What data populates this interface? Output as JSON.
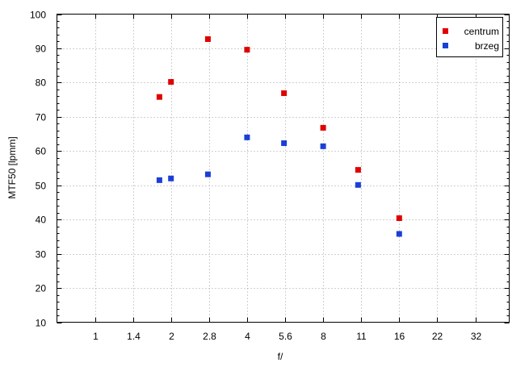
{
  "chart_data": {
    "type": "scatter",
    "title": "",
    "xlabel": "f/",
    "ylabel": "MTF50 [lpmm]",
    "x_ticks": [
      "1",
      "1.4",
      "2",
      "2.8",
      "4",
      "5.6",
      "8",
      "11",
      "16",
      "22",
      "32"
    ],
    "x_scale": "log2",
    "ylim": [
      10,
      100
    ],
    "y_ticks": [
      10,
      20,
      30,
      40,
      50,
      60,
      70,
      80,
      90,
      100
    ],
    "grid": true,
    "legend_position": "top-right",
    "series": [
      {
        "name": "centrum",
        "color": "#e00000",
        "x": [
          1.8,
          2,
          2.8,
          4,
          5.6,
          8,
          11,
          16
        ],
        "y": [
          75.8,
          80.2,
          92.7,
          89.6,
          76.9,
          66.8,
          54.5,
          40.4
        ]
      },
      {
        "name": "brzeg",
        "color": "#1a3fd8",
        "x": [
          1.8,
          2,
          2.8,
          4,
          5.6,
          8,
          11,
          16
        ],
        "y": [
          51.5,
          52.0,
          53.2,
          64.0,
          62.3,
          61.4,
          50.1,
          35.8
        ]
      }
    ]
  }
}
